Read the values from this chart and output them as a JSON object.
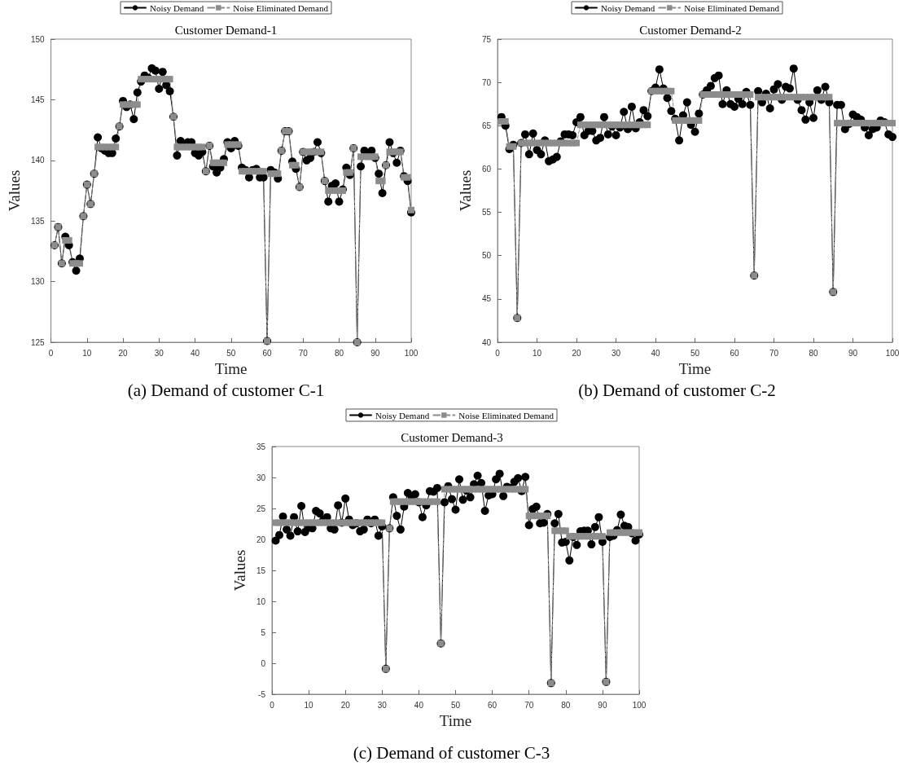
{
  "chart_data": [
    {
      "type": "line",
      "title": "Customer Demand-1",
      "xlabel": "Time",
      "ylabel": "Values",
      "annotations": [
        "(a) Demand of customer C-1"
      ],
      "legend": "top",
      "grid": false,
      "x": [
        1,
        2,
        3,
        4,
        5,
        6,
        7,
        8,
        9,
        10,
        11,
        12,
        13,
        14,
        15,
        16,
        17,
        18,
        19,
        20,
        21,
        22,
        23,
        24,
        25,
        26,
        27,
        28,
        29,
        30,
        31,
        32,
        33,
        34,
        35,
        36,
        37,
        38,
        39,
        40,
        41,
        42,
        43,
        44,
        45,
        46,
        47,
        48,
        49,
        50,
        51,
        52,
        53,
        54,
        55,
        56,
        57,
        58,
        59,
        60,
        61,
        62,
        63,
        64,
        65,
        66,
        67,
        68,
        69,
        70,
        71,
        72,
        73,
        74,
        75,
        76,
        77,
        78,
        79,
        80,
        81,
        82,
        83,
        84,
        85,
        86,
        87,
        88,
        89,
        90,
        91,
        92,
        93,
        94,
        95,
        96,
        97,
        98,
        99,
        100
      ],
      "xlim": [
        0,
        100
      ],
      "xticks": [
        0,
        10,
        20,
        30,
        40,
        50,
        60,
        70,
        80,
        90,
        100
      ],
      "ylim": [
        125,
        150
      ],
      "yticks": [
        125,
        130,
        135,
        140,
        145,
        150
      ],
      "series": [
        {
          "name": "Noisy Demand",
          "color": "#000000",
          "marker": "circle",
          "line_style": "solid",
          "values": [
            133.0,
            134.5,
            131.5,
            133.7,
            133.0,
            131.6,
            130.9,
            131.9,
            135.4,
            138.0,
            136.4,
            138.9,
            141.9,
            141.0,
            140.8,
            140.6,
            140.6,
            141.8,
            142.8,
            144.9,
            144.4,
            144.6,
            143.4,
            145.6,
            146.5,
            147.0,
            146.8,
            147.6,
            147.4,
            145.9,
            147.3,
            146.2,
            145.7,
            143.6,
            140.4,
            141.6,
            141.3,
            141.5,
            141.5,
            140.6,
            140.4,
            140.7,
            139.1,
            141.2,
            139.5,
            139.0,
            139.4,
            140.1,
            141.5,
            141.0,
            141.6,
            141.2,
            139.4,
            139.2,
            138.6,
            139.2,
            139.3,
            138.6,
            138.6,
            125.1,
            139.2,
            139.0,
            138.5,
            140.8,
            142.4,
            142.4,
            139.9,
            139.3,
            137.8,
            140.7,
            140.0,
            140.2,
            140.7,
            141.5,
            140.6,
            138.3,
            136.6,
            137.9,
            138.1,
            136.6,
            137.6,
            139.4,
            138.8,
            141.0,
            125.0,
            139.5,
            140.8,
            140.4,
            140.8,
            140.2,
            138.9,
            137.3,
            139.6,
            141.5,
            140.6,
            139.8,
            140.8,
            138.7,
            138.3,
            135.7
          ]
        },
        {
          "name": "Noise Eliminated Demand",
          "color": "#8c8c8c",
          "marker": "square",
          "line_style": "dashed",
          "values": [
            133.0,
            134.5,
            131.5,
            133.4,
            133.4,
            131.5,
            131.5,
            131.5,
            135.4,
            138.0,
            136.4,
            138.9,
            141.1,
            141.1,
            141.1,
            141.1,
            141.1,
            141.1,
            142.8,
            144.6,
            144.6,
            144.6,
            144.6,
            144.6,
            146.7,
            146.7,
            146.7,
            146.7,
            146.7,
            146.7,
            146.7,
            146.7,
            146.7,
            143.6,
            141.1,
            141.1,
            141.1,
            141.1,
            141.1,
            141.1,
            141.1,
            141.1,
            139.1,
            141.2,
            139.8,
            139.8,
            139.8,
            139.8,
            141.3,
            141.3,
            141.3,
            141.3,
            139.1,
            139.1,
            139.1,
            139.1,
            139.1,
            139.1,
            139.1,
            125.1,
            138.9,
            138.9,
            138.9,
            140.8,
            142.4,
            142.4,
            139.6,
            139.6,
            137.8,
            140.7,
            140.7,
            140.7,
            140.7,
            140.7,
            140.7,
            138.3,
            137.5,
            137.5,
            137.5,
            137.5,
            137.5,
            139.0,
            139.0,
            141.0,
            125.0,
            140.3,
            140.3,
            140.3,
            140.3,
            140.3,
            138.3,
            138.3,
            139.6,
            140.7,
            140.7,
            140.7,
            140.7,
            138.6,
            138.6,
            135.9
          ]
        }
      ]
    },
    {
      "type": "line",
      "title": "Customer Demand-2",
      "xlabel": "Time",
      "ylabel": "Values",
      "annotations": [
        "(b) Demand of customer C-2"
      ],
      "legend": "top",
      "grid": false,
      "x": [
        1,
        2,
        3,
        4,
        5,
        6,
        7,
        8,
        9,
        10,
        11,
        12,
        13,
        14,
        15,
        16,
        17,
        18,
        19,
        20,
        21,
        22,
        23,
        24,
        25,
        26,
        27,
        28,
        29,
        30,
        31,
        32,
        33,
        34,
        35,
        36,
        37,
        38,
        39,
        40,
        41,
        42,
        43,
        44,
        45,
        46,
        47,
        48,
        49,
        50,
        51,
        52,
        53,
        54,
        55,
        56,
        57,
        58,
        59,
        60,
        61,
        62,
        63,
        64,
        65,
        66,
        67,
        68,
        69,
        70,
        71,
        72,
        73,
        74,
        75,
        76,
        77,
        78,
        79,
        80,
        81,
        82,
        83,
        84,
        85,
        86,
        87,
        88,
        89,
        90,
        91,
        92,
        93,
        94,
        95,
        96,
        97,
        98,
        99,
        100
      ],
      "xlim": [
        0,
        100
      ],
      "xticks": [
        0,
        10,
        20,
        30,
        40,
        50,
        60,
        70,
        80,
        90,
        100
      ],
      "ylim": [
        40,
        75
      ],
      "yticks": [
        40,
        45,
        50,
        55,
        60,
        65,
        70,
        75
      ],
      "series": [
        {
          "name": "Noisy Demand",
          "color": "#000000",
          "marker": "circle",
          "line_style": "solid",
          "values": [
            66.0,
            65.0,
            62.3,
            62.8,
            42.8,
            63.0,
            64.0,
            61.7,
            64.1,
            62.2,
            61.7,
            63.3,
            60.9,
            61.1,
            61.4,
            63.2,
            64.0,
            64.0,
            63.9,
            65.4,
            66.0,
            63.9,
            64.4,
            64.4,
            63.3,
            63.6,
            66.0,
            64.0,
            64.9,
            63.9,
            64.8,
            66.6,
            64.6,
            67.2,
            64.7,
            65.4,
            66.8,
            66.1,
            69.0,
            69.4,
            71.5,
            69.3,
            68.2,
            66.7,
            65.8,
            63.3,
            66.2,
            67.7,
            65.1,
            64.3,
            66.4,
            68.6,
            69.1,
            69.6,
            70.5,
            70.8,
            67.5,
            69.1,
            67.5,
            67.2,
            68.1,
            67.5,
            68.9,
            67.4,
            47.7,
            69.0,
            67.7,
            68.7,
            67.0,
            69.2,
            69.8,
            68.0,
            69.5,
            69.3,
            71.6,
            68.0,
            66.8,
            65.7,
            67.7,
            65.9,
            69.1,
            68.0,
            69.5,
            67.7,
            45.8,
            67.4,
            67.4,
            64.6,
            65.2,
            66.3,
            66.0,
            65.7,
            64.8,
            63.9,
            64.6,
            64.8,
            65.6,
            65.4,
            64.0,
            63.7
          ]
        },
        {
          "name": "Noise Eliminated Demand",
          "color": "#8c8c8c",
          "marker": "square",
          "line_style": "dashed",
          "values": [
            65.5,
            65.5,
            62.6,
            62.6,
            42.8,
            63.0,
            63.0,
            63.0,
            63.0,
            63.0,
            63.0,
            63.0,
            63.0,
            63.0,
            63.0,
            63.0,
            63.0,
            63.0,
            63.0,
            63.0,
            65.1,
            65.1,
            65.1,
            65.1,
            65.1,
            65.1,
            65.1,
            65.1,
            65.1,
            65.1,
            65.1,
            65.1,
            65.1,
            65.1,
            65.1,
            65.1,
            65.1,
            65.1,
            69.0,
            69.0,
            69.0,
            69.0,
            69.0,
            69.0,
            65.6,
            65.6,
            65.6,
            65.6,
            65.6,
            65.6,
            65.6,
            68.6,
            68.6,
            68.6,
            68.6,
            68.6,
            68.6,
            68.6,
            68.6,
            68.6,
            68.6,
            68.6,
            68.6,
            68.6,
            47.7,
            68.3,
            68.3,
            68.3,
            68.3,
            68.3,
            68.3,
            68.3,
            68.3,
            68.3,
            68.3,
            68.3,
            68.3,
            68.3,
            68.3,
            68.3,
            68.3,
            68.3,
            68.3,
            68.3,
            45.8,
            65.3,
            65.3,
            65.3,
            65.3,
            65.3,
            65.3,
            65.3,
            65.3,
            65.3,
            65.3,
            65.3,
            65.3,
            65.3,
            65.3,
            65.3
          ]
        }
      ]
    },
    {
      "type": "line",
      "title": "Customer Demand-3",
      "xlabel": "Time",
      "ylabel": "Values",
      "annotations": [
        "(c) Demand of customer C-3"
      ],
      "legend": "top",
      "grid": false,
      "x": [
        1,
        2,
        3,
        4,
        5,
        6,
        7,
        8,
        9,
        10,
        11,
        12,
        13,
        14,
        15,
        16,
        17,
        18,
        19,
        20,
        21,
        22,
        23,
        24,
        25,
        26,
        27,
        28,
        29,
        30,
        31,
        32,
        33,
        34,
        35,
        36,
        37,
        38,
        39,
        40,
        41,
        42,
        43,
        44,
        45,
        46,
        47,
        48,
        49,
        50,
        51,
        52,
        53,
        54,
        55,
        56,
        57,
        58,
        59,
        60,
        61,
        62,
        63,
        64,
        65,
        66,
        67,
        68,
        69,
        70,
        71,
        72,
        73,
        74,
        75,
        76,
        77,
        78,
        79,
        80,
        81,
        82,
        83,
        84,
        85,
        86,
        87,
        88,
        89,
        90,
        91,
        92,
        93,
        94,
        95,
        96,
        97,
        98,
        99,
        100
      ],
      "xlim": [
        0,
        100
      ],
      "xticks": [
        0,
        10,
        20,
        30,
        40,
        50,
        60,
        70,
        80,
        90,
        100
      ],
      "ylim": [
        -5,
        35
      ],
      "yticks": [
        -5,
        0,
        5,
        10,
        15,
        20,
        25,
        30,
        35
      ],
      "series": [
        {
          "name": "Noisy Demand",
          "color": "#000000",
          "marker": "circle",
          "line_style": "solid",
          "values": [
            19.8,
            20.7,
            23.7,
            21.6,
            20.6,
            23.6,
            21.3,
            25.4,
            21.2,
            21.9,
            21.8,
            24.6,
            24.2,
            23.2,
            23.6,
            21.8,
            21.6,
            25.5,
            22.7,
            26.6,
            23.2,
            22.3,
            22.6,
            21.3,
            21.6,
            23.2,
            22.6,
            23.2,
            20.6,
            22.1,
            -0.9,
            21.8,
            26.8,
            23.8,
            21.6,
            25.3,
            27.5,
            26.9,
            27.3,
            26.0,
            23.6,
            25.5,
            27.8,
            27.7,
            28.3,
            3.2,
            26.0,
            28.6,
            26.5,
            24.8,
            29.7,
            26.4,
            27.9,
            26.8,
            28.9,
            30.3,
            29.1,
            24.6,
            27.1,
            27.3,
            29.7,
            30.6,
            27.0,
            28.5,
            28.3,
            29.3,
            29.9,
            27.8,
            30.1,
            22.3,
            24.9,
            25.3,
            22.6,
            22.7,
            24.1,
            -3.2,
            22.6,
            24.1,
            19.5,
            19.6,
            16.6,
            20.4,
            19.1,
            21.3,
            21.4,
            21.4,
            19.2,
            22.0,
            23.6,
            19.6,
            -3.0,
            20.4,
            20.6,
            21.5,
            24.0,
            22.2,
            22.0,
            21.0,
            19.8,
            20.8
          ]
        },
        {
          "name": "Noise Eliminated Demand",
          "color": "#8c8c8c",
          "marker": "square",
          "line_style": "dashed",
          "values": [
            22.7,
            22.7,
            22.7,
            22.7,
            22.7,
            22.7,
            22.7,
            22.7,
            22.7,
            22.7,
            22.7,
            22.7,
            22.7,
            22.7,
            22.7,
            22.7,
            22.7,
            22.7,
            22.7,
            22.7,
            22.7,
            22.7,
            22.7,
            22.7,
            22.7,
            22.7,
            22.7,
            22.7,
            22.7,
            22.7,
            -0.9,
            21.8,
            26.1,
            26.1,
            26.1,
            26.1,
            26.1,
            26.1,
            26.1,
            26.1,
            26.1,
            26.1,
            26.1,
            26.1,
            26.1,
            3.2,
            28.1,
            28.1,
            28.1,
            28.1,
            28.1,
            28.1,
            28.1,
            28.1,
            28.1,
            28.1,
            28.1,
            28.1,
            28.1,
            28.1,
            28.1,
            28.1,
            28.1,
            28.1,
            28.1,
            28.1,
            28.1,
            28.1,
            28.1,
            23.8,
            23.8,
            23.8,
            23.8,
            23.8,
            23.8,
            -3.2,
            21.4,
            21.4,
            21.4,
            21.4,
            20.5,
            20.5,
            20.5,
            20.5,
            20.5,
            20.5,
            20.5,
            20.5,
            20.5,
            20.5,
            -3.0,
            21.1,
            21.1,
            21.1,
            21.1,
            21.1,
            21.1,
            21.1,
            21.1,
            21.1
          ]
        }
      ]
    }
  ]
}
